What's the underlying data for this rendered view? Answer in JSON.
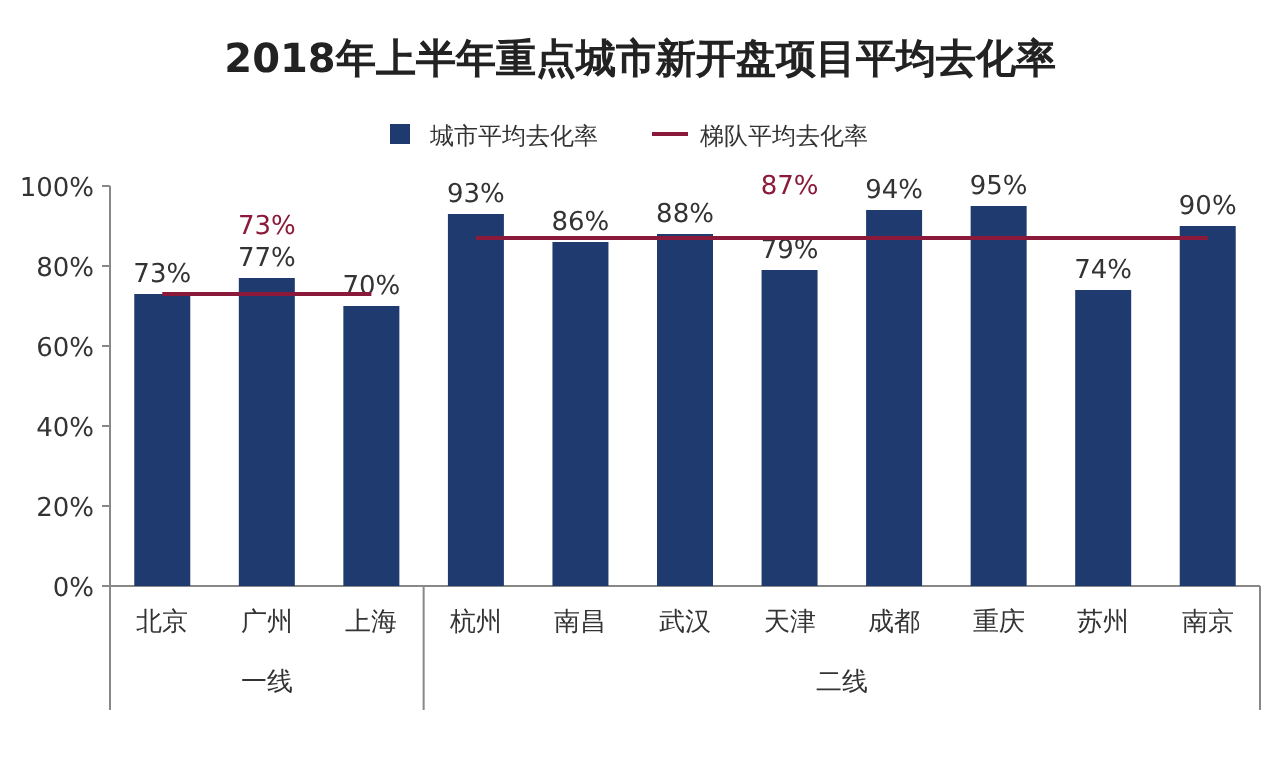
{
  "chart_data": {
    "type": "bar",
    "title": "2018年上半年重点城市新开盘项目平均去化率",
    "categories": [
      "北京",
      "广州",
      "上海",
      "杭州",
      "南昌",
      "武汉",
      "天津",
      "成都",
      "重庆",
      "苏州",
      "南京"
    ],
    "series": [
      {
        "name": "城市平均去化率",
        "color": "#1f3a6e",
        "values": [
          73,
          77,
          70,
          93,
          86,
          88,
          79,
          94,
          95,
          74,
          90
        ],
        "value_labels": [
          "73%",
          "77%",
          "70%",
          "93%",
          "86%",
          "88%",
          "79%",
          "94%",
          "95%",
          "74%",
          "90%"
        ]
      },
      {
        "name": "梯队平均去化率",
        "type": "line",
        "color": "#8b1a3a",
        "values": [
          73,
          73,
          73,
          87,
          87,
          87,
          87,
          87,
          87,
          87,
          87
        ],
        "value_labels": [
          null,
          "73%",
          null,
          null,
          null,
          null,
          "87%",
          null,
          null,
          null,
          null
        ]
      }
    ],
    "ylim": [
      0,
      100
    ],
    "yticks": [
      {
        "value": 0,
        "label": "0%"
      },
      {
        "value": 20,
        "label": "20%"
      },
      {
        "value": 40,
        "label": "40%"
      },
      {
        "value": 60,
        "label": "60%"
      },
      {
        "value": 80,
        "label": "80%"
      },
      {
        "value": 100,
        "label": "100%"
      }
    ],
    "legend": "top",
    "grid": false,
    "annotations": [
      "一线",
      "二线"
    ]
  }
}
